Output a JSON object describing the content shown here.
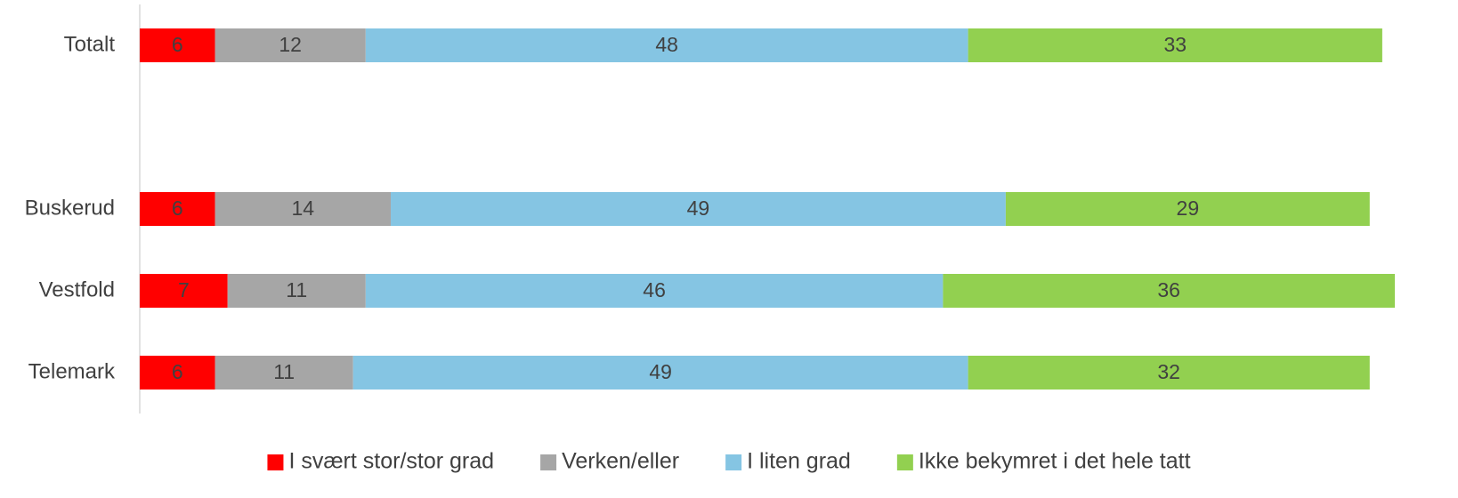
{
  "chart_data": {
    "type": "stacked-barh",
    "categories": [
      "Totalt",
      null,
      "Buskerud",
      "Vestfold",
      "Telemark"
    ],
    "series": [
      {
        "name": "I svært stor/stor grad",
        "color": "#ff0000",
        "values": [
          6,
          null,
          6,
          7,
          6
        ]
      },
      {
        "name": "Verken/eller",
        "color": "#a6a6a6",
        "values": [
          12,
          null,
          14,
          11,
          11
        ]
      },
      {
        "name": "I liten grad",
        "color": "#85c5e3",
        "values": [
          48,
          null,
          49,
          46,
          49
        ]
      },
      {
        "name": "Ikke bekymret i det hele tatt",
        "color": "#92d050",
        "values": [
          33,
          null,
          29,
          36,
          32
        ]
      }
    ],
    "xlim": [
      0,
      100
    ],
    "legend": "bottom"
  }
}
